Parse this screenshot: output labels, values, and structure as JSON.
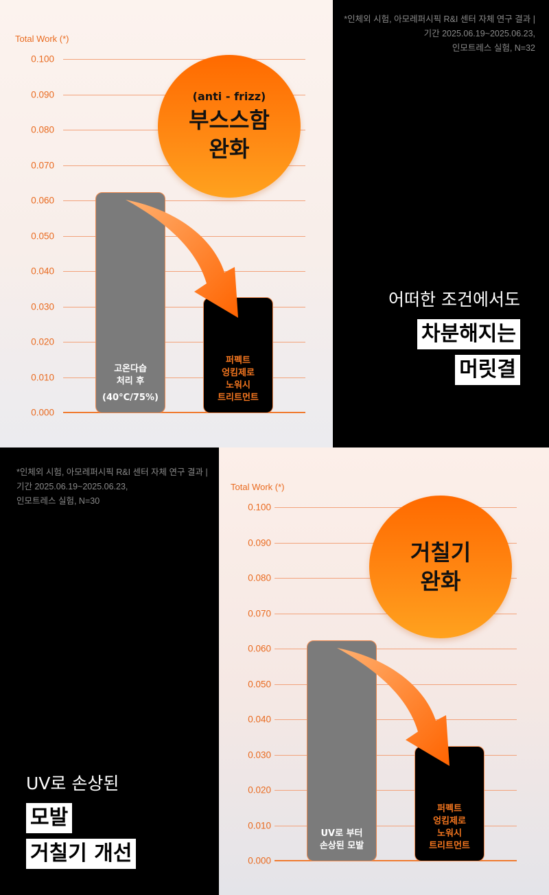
{
  "colors": {
    "accent": "#f07a2e",
    "badge_top": "#ff6a00",
    "badge_bottom": "#ffa21e",
    "bar_before": "#7b7b7b",
    "bar_after": "#000000",
    "after_label": "#f4761f",
    "background_dark": "#000000"
  },
  "section1": {
    "footnote": [
      "*인체외 시험, 아모레퍼시픽 R&I 센터 자체 연구 결과 |",
      "기간 2025.06.19~2025.06.23,",
      "인모트레스 실험, N=32"
    ],
    "badge": {
      "sub": "(anti - frizz)",
      "lines": [
        "부스스함",
        "완화"
      ]
    },
    "headline": {
      "plain": "어떠한 조건에서도",
      "highlight": [
        "차분해지는",
        "머릿결"
      ]
    },
    "bars": [
      {
        "label_lines": [
          "고온다습",
          "처리 후",
          "(40°C/75%)"
        ]
      },
      {
        "label_lines": [
          "퍼펙트",
          "엉킴제로",
          "노워시",
          "트리트먼트"
        ]
      }
    ]
  },
  "section2": {
    "footnote": [
      "*인체외 시험, 아모레퍼시픽 R&I 센터 자체 연구 결과 |",
      "기간 2025.06.19~2025.06.23,",
      "인모트레스 실험, N=30"
    ],
    "badge": {
      "lines": [
        "거칠기",
        "완화"
      ]
    },
    "headline": {
      "plain": "UV로 손상된",
      "highlight": [
        "모발",
        "거칠기 개선"
      ]
    },
    "bars": [
      {
        "label_lines": [
          "UV로 부터",
          "손상된 모발"
        ]
      },
      {
        "label_lines": [
          "퍼펙트",
          "엉킴제로",
          "노워시",
          "트리트먼트"
        ]
      }
    ]
  },
  "chart_data": [
    {
      "type": "bar",
      "title": "부스스함 완화 (anti - frizz)",
      "ylabel": "Total Work (*)",
      "xlabel": "",
      "yticks": [
        "0.100",
        "0.090",
        "0.080",
        "0.070",
        "0.060",
        "0.050",
        "0.040",
        "0.030",
        "0.020",
        "0.010",
        "0.000"
      ],
      "ylim": [
        0,
        0.1
      ],
      "grid": true,
      "categories": [
        "고온다습 처리 후 (40°C/75%)",
        "퍼펙트 엉킴제로 노워시 트리트먼트"
      ],
      "values": [
        0.062,
        0.032
      ],
      "annotation": "arrow from first bar to second bar"
    },
    {
      "type": "bar",
      "title": "거칠기 완화",
      "ylabel": "Total Work (*)",
      "xlabel": "",
      "yticks": [
        "0.100",
        "0.090",
        "0.080",
        "0.070",
        "0.060",
        "0.050",
        "0.040",
        "0.030",
        "0.020",
        "0.010",
        "0.000"
      ],
      "ylim": [
        0,
        0.1
      ],
      "grid": true,
      "categories": [
        "UV로 부터 손상된 모발",
        "퍼펙트 엉킴제로 노워시 트리트먼트"
      ],
      "values": [
        0.062,
        0.032
      ],
      "annotation": "arrow from first bar to second bar"
    }
  ]
}
